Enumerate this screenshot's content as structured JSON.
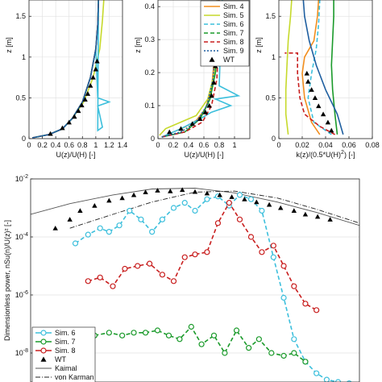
{
  "colors": {
    "sim4": "#f28e1e",
    "sim5": "#c6d92b",
    "sim6": "#3cbfdc",
    "sim7": "#1a9a2a",
    "sim8": "#c81e1e",
    "sim9": "#1f5fa0",
    "wt": "#000000",
    "kaimal": "#555555",
    "vonkarman": "#222222"
  },
  "chart_data": [
    {
      "type": "line",
      "xlabel": "U(z)/U(H) [-]",
      "ylabel": "z [m]",
      "xlim": [
        0,
        1.4
      ],
      "ylim": [
        0,
        1.7
      ],
      "xticks": [
        0,
        0.2,
        0.4,
        0.6,
        0.8,
        1,
        1.2,
        1.4
      ],
      "xtick_labels": [
        "0",
        "0.2",
        "0.4",
        "0.6",
        "0.8",
        "1",
        "1.2",
        "1.4"
      ],
      "yticks": [
        0,
        0.5,
        1,
        1.5
      ],
      "ytick_labels": [
        "0",
        "0.5",
        "1",
        "1.5"
      ],
      "grid": true,
      "series": [
        {
          "key": "sim4",
          "style": "solid",
          "x": [
            0.05,
            0.3,
            0.5,
            0.65,
            0.8,
            0.92,
            1.0,
            1.03,
            1.04
          ],
          "y": [
            0.01,
            0.05,
            0.12,
            0.25,
            0.45,
            0.75,
            1.1,
            1.4,
            1.7
          ]
        },
        {
          "key": "sim5",
          "style": "solid",
          "x": [
            0.05,
            0.3,
            0.5,
            0.65,
            0.82,
            0.96,
            1.06,
            1.1,
            1.12
          ],
          "y": [
            0.01,
            0.05,
            0.12,
            0.25,
            0.45,
            0.75,
            1.1,
            1.45,
            1.7
          ]
        },
        {
          "key": "sim6",
          "style": "solid",
          "x": [
            0.05,
            0.3,
            0.5,
            0.65,
            0.8,
            0.92,
            1.0,
            1.03,
            1.2,
            1.03,
            1.1,
            1.03,
            1.04
          ],
          "y": [
            0.01,
            0.05,
            0.12,
            0.25,
            0.45,
            0.75,
            1.1,
            0.5,
            0.45,
            0.4,
            0.14,
            0.1,
            1.7
          ]
        },
        {
          "key": "sim7",
          "style": "solid",
          "x": [
            0.05,
            0.3,
            0.5,
            0.65,
            0.8,
            0.92,
            1.0,
            1.03,
            1.04
          ],
          "y": [
            0.01,
            0.05,
            0.12,
            0.25,
            0.45,
            0.75,
            1.1,
            1.4,
            1.7
          ]
        },
        {
          "key": "sim8",
          "style": "dashed",
          "x": [
            0.05,
            0.3,
            0.5,
            0.65,
            0.8,
            0.92,
            1.0,
            1.03,
            1.04
          ],
          "y": [
            0.01,
            0.05,
            0.12,
            0.25,
            0.45,
            0.75,
            1.1,
            1.4,
            1.7
          ]
        },
        {
          "key": "sim9",
          "style": "solid",
          "x": [
            0.05,
            0.3,
            0.5,
            0.65,
            0.8,
            0.92,
            1.0,
            1.03,
            1.04
          ],
          "y": [
            0.01,
            0.05,
            0.12,
            0.25,
            0.45,
            0.75,
            1.1,
            1.4,
            1.7
          ]
        }
      ],
      "markers": {
        "key": "wt",
        "x": [
          0.32,
          0.5,
          0.6,
          0.68,
          0.74,
          0.79,
          0.84,
          0.88,
          0.92,
          0.96,
          1.0,
          1.02
        ],
        "y": [
          0.06,
          0.13,
          0.2,
          0.27,
          0.34,
          0.41,
          0.48,
          0.55,
          0.65,
          0.75,
          0.85,
          0.95
        ]
      }
    },
    {
      "type": "line",
      "xlabel": "U(z)/U(H) [-]",
      "ylabel": "z [m]",
      "xlim": [
        0,
        1.2
      ],
      "ylim": [
        0,
        0.42
      ],
      "xticks": [
        0,
        0.2,
        0.4,
        0.6,
        0.8,
        1
      ],
      "xtick_labels": [
        "0",
        "0.2",
        "0.4",
        "0.6",
        "0.8",
        "1"
      ],
      "yticks": [
        0,
        0.1,
        0.2,
        0.3,
        0.4
      ],
      "ytick_labels": [
        "0",
        "0.1",
        "0.2",
        "0.3",
        "0.4"
      ],
      "grid": true,
      "series": [
        {
          "key": "sim4",
          "style": "solid",
          "x": [
            0.05,
            0.2,
            0.35,
            0.5,
            0.62,
            0.7,
            0.74,
            0.76,
            0.77
          ],
          "y": [
            0.005,
            0.02,
            0.035,
            0.055,
            0.09,
            0.15,
            0.25,
            0.35,
            0.42
          ]
        },
        {
          "key": "sim5",
          "style": "solid",
          "x": [
            0.02,
            0.1,
            0.3,
            0.5,
            0.65,
            0.74,
            0.78,
            0.79
          ],
          "y": [
            0.01,
            0.03,
            0.05,
            0.07,
            0.12,
            0.2,
            0.3,
            0.42
          ]
        },
        {
          "key": "sim6",
          "style": "solid",
          "x": [
            0.05,
            0.3,
            0.55,
            0.7,
            0.95,
            0.75,
            1.05,
            0.8,
            0.82,
            0.84
          ],
          "y": [
            0.005,
            0.03,
            0.06,
            0.08,
            0.1,
            0.12,
            0.13,
            0.16,
            0.3,
            0.42
          ]
        },
        {
          "key": "sim7",
          "style": "solid",
          "x": [
            0.05,
            0.35,
            0.55,
            0.68,
            0.75,
            0.78,
            0.79
          ],
          "y": [
            0.005,
            0.02,
            0.06,
            0.12,
            0.2,
            0.3,
            0.42
          ]
        },
        {
          "key": "sim8",
          "style": "dashed",
          "x": [
            0.05,
            0.35,
            0.58,
            0.7,
            0.77,
            0.79,
            0.8
          ],
          "y": [
            0.005,
            0.02,
            0.05,
            0.1,
            0.18,
            0.3,
            0.42
          ]
        },
        {
          "key": "sim9",
          "style": "dotted",
          "x": [
            0.05,
            0.3,
            0.5,
            0.64,
            0.72,
            0.76,
            0.78
          ],
          "y": [
            0.005,
            0.02,
            0.05,
            0.1,
            0.18,
            0.3,
            0.42
          ]
        }
      ],
      "markers": {
        "key": "wt",
        "x": [
          0.15,
          0.3,
          0.45,
          0.55,
          0.62,
          0.67,
          0.7,
          0.73,
          0.75,
          0.77,
          0.78
        ],
        "y": [
          0.02,
          0.03,
          0.045,
          0.06,
          0.08,
          0.1,
          0.13,
          0.17,
          0.22,
          0.28,
          0.33
        ]
      },
      "legend": {
        "position": "top-right",
        "entries": [
          {
            "key": "sim4",
            "label": "Sim. 4",
            "style": "solid"
          },
          {
            "key": "sim5",
            "label": "Sim. 5",
            "style": "solid"
          },
          {
            "key": "sim6",
            "label": "Sim. 6",
            "style": "dashed"
          },
          {
            "key": "sim7",
            "label": "Sim. 7",
            "style": "dashed"
          },
          {
            "key": "sim8",
            "label": "Sim. 8",
            "style": "dashed"
          },
          {
            "key": "sim9",
            "label": "Sim. 9",
            "style": "dotted"
          },
          {
            "key": "wt",
            "label": "WT",
            "style": "marker"
          }
        ]
      }
    },
    {
      "type": "line",
      "xlabel": "k(z)/(0.5*U(H)²) [-]",
      "ylabel": "z [m]",
      "xlim": [
        0,
        0.08
      ],
      "ylim": [
        0,
        1.7
      ],
      "xticks": [
        0,
        0.02,
        0.04,
        0.06,
        0.08
      ],
      "xtick_labels": [
        "0",
        "0.02",
        "0.04",
        "0.06",
        "0.08"
      ],
      "yticks": [
        0,
        0.5,
        1,
        1.5
      ],
      "ytick_labels": [
        "0",
        "0.5",
        "1",
        "1.5"
      ],
      "grid": true,
      "series": [
        {
          "key": "sim4",
          "style": "solid",
          "x": [
            0.035,
            0.028,
            0.022,
            0.02,
            0.022,
            0.03,
            0.033,
            0.034
          ],
          "y": [
            0.05,
            0.2,
            0.5,
            0.8,
            1.0,
            1.2,
            1.5,
            1.7
          ]
        },
        {
          "key": "sim5",
          "style": "solid",
          "x": [
            0.008,
            0.006,
            0.006,
            0.007,
            0.008,
            0.01,
            0.011
          ],
          "y": [
            0.05,
            0.3,
            0.6,
            0.9,
            1.2,
            1.5,
            1.7
          ]
        },
        {
          "key": "sim6",
          "style": "dashed",
          "x": [
            0.045,
            0.03,
            0.025,
            0.028,
            0.032,
            0.034,
            0.035
          ],
          "y": [
            0.05,
            0.2,
            0.5,
            0.8,
            1.1,
            1.4,
            1.7
          ]
        },
        {
          "key": "sim7",
          "style": "solid",
          "x": [
            0.05,
            0.048,
            0.046,
            0.045,
            0.046,
            0.047,
            0.047
          ],
          "y": [
            0.05,
            0.3,
            0.6,
            0.9,
            1.2,
            1.5,
            1.7
          ]
        },
        {
          "key": "sim8",
          "style": "dashed",
          "x": [
            0.048,
            0.035,
            0.022,
            0.018,
            0.016,
            0.016,
            0.016,
            0.005
          ],
          "y": [
            0.05,
            0.15,
            0.3,
            0.5,
            0.8,
            1.0,
            1.05,
            1.05
          ]
        },
        {
          "key": "sim9",
          "style": "solid",
          "x": [
            0.055,
            0.05,
            0.04,
            0.032,
            0.026,
            0.022,
            0.021
          ],
          "y": [
            0.05,
            0.3,
            0.6,
            0.9,
            1.2,
            1.5,
            1.7
          ]
        }
      ],
      "markers": {
        "key": "wt",
        "x": [
          0.045,
          0.042,
          0.038,
          0.034,
          0.031,
          0.028,
          0.025,
          0.024
        ],
        "y": [
          0.1,
          0.2,
          0.3,
          0.4,
          0.5,
          0.6,
          0.7,
          0.8
        ]
      }
    },
    {
      "type": "line",
      "yscale": "log",
      "ylabel": "Dimensionless power, nSu(n)/U(z)² [-]",
      "ylim": [
        1e-09,
        0.01
      ],
      "yticks": [
        1e-08,
        1e-06,
        0.0001,
        0.01
      ],
      "ytick_labels": [
        "10-8",
        "10-6",
        "10-4",
        "10-2"
      ],
      "xscale": "log",
      "xlim": [
        0.001,
        10
      ],
      "grid": true,
      "series": [
        {
          "key": "kaimal",
          "label": "Kaimal",
          "style": "solid",
          "x": [
            0.001,
            0.003,
            0.01,
            0.03,
            0.1,
            0.3,
            1,
            3,
            10
          ],
          "y": [
            0.0006,
            0.0014,
            0.0028,
            0.0045,
            0.0048,
            0.0033,
            0.0016,
            0.0007,
            0.00025
          ]
        },
        {
          "key": "vonkarman",
          "label": "von Karman",
          "style": "dashdot",
          "x": [
            0.003,
            0.01,
            0.03,
            0.1,
            0.3,
            1,
            3,
            10
          ],
          "y": [
            0.0002,
            0.0006,
            0.0016,
            0.0035,
            0.0038,
            0.0022,
            0.0009,
            0.0003
          ]
        },
        {
          "key": "sim6",
          "label": "Sim. 6",
          "style": "dashed-circle",
          "x": [
            0.0035,
            0.005,
            0.007,
            0.009,
            0.012,
            0.016,
            0.022,
            0.03,
            0.04,
            0.055,
            0.075,
            0.1,
            0.14,
            0.19,
            0.26,
            0.35,
            0.48,
            0.65,
            0.9,
            1.2,
            1.6,
            2.2,
            3.0,
            4.0,
            5.5,
            7.5
          ],
          "y": [
            6e-05,
            0.00012,
            0.0002,
            0.00015,
            0.00025,
            0.0008,
            0.0004,
            0.00015,
            0.0004,
            0.001,
            0.0015,
            0.0008,
            0.002,
            0.0025,
            0.0012,
            0.0028,
            0.002,
            0.0008,
            2e-05,
            8e-07,
            3e-08,
            5e-09,
            2e-09,
            1.2e-09,
            1e-09,
            9e-10
          ]
        },
        {
          "key": "sim7",
          "label": "Sim. 7",
          "style": "dashed-circle",
          "x": [
            0.006,
            0.009,
            0.013,
            0.018,
            0.025,
            0.035,
            0.048,
            0.065,
            0.09,
            0.12,
            0.17,
            0.23,
            0.32,
            0.45,
            0.6,
            0.85,
            1.2,
            1.6,
            2.2
          ],
          "y": [
            4e-08,
            5e-08,
            4e-08,
            5e-08,
            5e-08,
            6e-08,
            4e-08,
            3e-08,
            8e-08,
            2e-08,
            4e-08,
            1e-08,
            6e-08,
            1.5e-08,
            3e-08,
            1e-08,
            8e-09,
            1e-08,
            5e-09
          ]
        },
        {
          "key": "sim8",
          "label": "Sim. 8",
          "style": "dashed-circle",
          "x": [
            0.005,
            0.007,
            0.01,
            0.014,
            0.02,
            0.028,
            0.04,
            0.055,
            0.075,
            0.1,
            0.14,
            0.19,
            0.26,
            0.35,
            0.48,
            0.65,
            0.9,
            1.2,
            1.6,
            2.2,
            3.0
          ],
          "y": [
            3e-06,
            4e-06,
            2e-06,
            8e-06,
            1e-05,
            1.2e-05,
            5e-06,
            3e-06,
            2e-05,
            2.5e-05,
            3e-05,
            0.0003,
            0.0015,
            0.0004,
            0.0001,
            3e-05,
            5e-05,
            1e-05,
            2e-06,
            5e-07,
            3e-07
          ]
        },
        {
          "key": "wt",
          "label": "WT",
          "style": "marker",
          "x": [
            0.002,
            0.003,
            0.004,
            0.006,
            0.009,
            0.013,
            0.018,
            0.025,
            0.035,
            0.05,
            0.07,
            0.1,
            0.14,
            0.2,
            0.28,
            0.4,
            0.56,
            0.8,
            1.1,
            1.6,
            2.2,
            3.1,
            4.4
          ],
          "y": [
            0.0002,
            0.0004,
            0.0008,
            0.0012,
            0.0018,
            0.0022,
            0.0028,
            0.0035,
            0.004,
            0.0038,
            0.0042,
            0.0036,
            0.0032,
            0.0028,
            0.0024,
            0.002,
            0.0016,
            0.0013,
            0.001,
            0.0008,
            0.0006,
            0.0005,
            0.0004
          ]
        }
      ],
      "legend": {
        "position": "bottom-left",
        "entries": [
          {
            "key": "sim6",
            "label": "Sim. 6",
            "style": "circle"
          },
          {
            "key": "sim7",
            "label": "Sim. 7",
            "style": "circle"
          },
          {
            "key": "sim8",
            "label": "Sim. 8",
            "style": "circle"
          },
          {
            "key": "wt",
            "label": "WT",
            "style": "marker"
          },
          {
            "key": "kaimal",
            "label": "Kaimal",
            "style": "solid"
          },
          {
            "key": "vonkarman",
            "label": "von Karman",
            "style": "dashdot"
          }
        ]
      }
    }
  ]
}
